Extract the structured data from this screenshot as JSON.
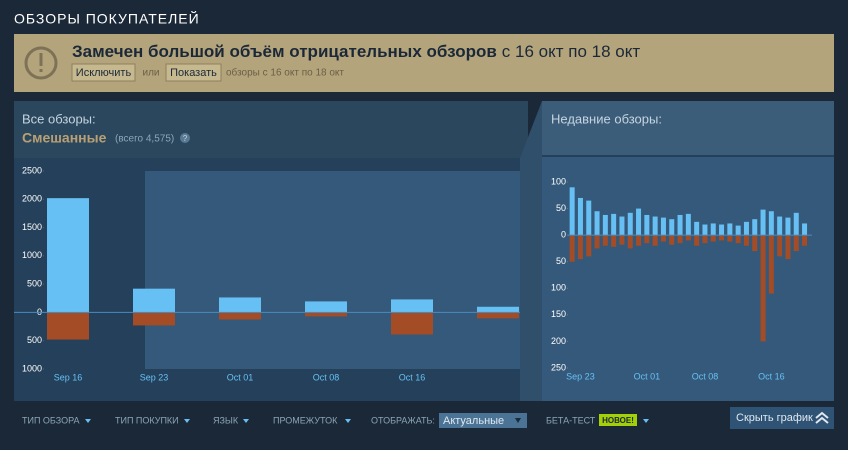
{
  "header": {
    "title": "ОБЗОРЫ ПОКУПАТЕЛЕЙ"
  },
  "banner": {
    "headline": "Замечен большой объём отрицательных обзоров",
    "range": "с 16 окт по 18 окт",
    "exclude": "Исключить",
    "or": "или",
    "show": "Показать",
    "note": "обзоры с 16 окт по 18 окт"
  },
  "summary": {
    "rating": "Смешанные",
    "total": "(всего 4,575)",
    "help": "?"
  },
  "chart_data": [
    {
      "type": "bar",
      "title": "Все обзоры:",
      "categories": [
        "Sep 16",
        "Sep 23",
        "Oct 01",
        "Oct 08",
        "Oct 16",
        null
      ],
      "series": [
        {
          "color": "#66c0f4",
          "values": [
            2020,
            420,
            265,
            195,
            230,
            100
          ]
        },
        {
          "color": "#a34c25",
          "values": [
            -480,
            -230,
            -125,
            -70,
            -390,
            -105
          ]
        }
      ],
      "ylim": [
        -1000,
        2500
      ],
      "yticks": [
        2500,
        2000,
        1500,
        1000,
        500,
        0,
        {
          "value": -500,
          "label": "500"
        },
        {
          "value": -1000,
          "label": "1000"
        }
      ]
    },
    {
      "type": "bar",
      "title": "Недавние обзоры:",
      "categories": [
        null,
        "Sep 23",
        null,
        null,
        null,
        null,
        null,
        null,
        null,
        "Oct 01",
        null,
        null,
        null,
        null,
        null,
        null,
        "Oct 08",
        null,
        null,
        null,
        null,
        null,
        null,
        null,
        "Oct 16",
        null,
        null,
        null,
        null
      ],
      "series": [
        {
          "color": "#66c0f4",
          "values": [
            90,
            70,
            65,
            45,
            38,
            40,
            35,
            42,
            50,
            38,
            35,
            33,
            30,
            38,
            40,
            25,
            20,
            22,
            20,
            22,
            18,
            25,
            30,
            48,
            45,
            35,
            33,
            42,
            22
          ]
        },
        {
          "color": "#a34c25",
          "values": [
            -50,
            -45,
            -40,
            -25,
            -20,
            -22,
            -18,
            -25,
            -20,
            -15,
            -20,
            -12,
            -18,
            -15,
            -10,
            -20,
            -15,
            -12,
            -10,
            -12,
            -15,
            -20,
            -30,
            -200,
            -110,
            -40,
            -45,
            -30,
            -20
          ]
        }
      ],
      "ylim": [
        -250,
        100
      ],
      "yticks": [
        100,
        50,
        0,
        {
          "value": -50,
          "label": "50"
        },
        {
          "value": -100,
          "label": "100"
        },
        {
          "value": -150,
          "label": "150"
        },
        {
          "value": -200,
          "label": "200"
        },
        {
          "value": -250,
          "label": "250"
        }
      ]
    }
  ],
  "footer": {
    "review_type": "ТИП ОБЗОРА",
    "purchase_type": "ТИП ПОКУПКИ",
    "language": "ЯЗЫК",
    "period": "ПРОМЕЖУТОК",
    "display": "ОТОБРАЖАТЬ:",
    "display_value": "Актуальные",
    "beta": "БЕТА-ТЕСТ",
    "new_badge": "НОВОЕ!",
    "hide_graph": "Скрыть график"
  }
}
